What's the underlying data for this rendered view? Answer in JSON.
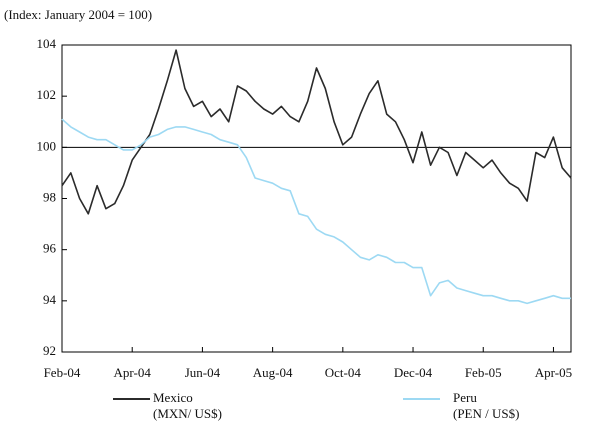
{
  "chart_data": {
    "type": "line",
    "subtitle": "(Index: January 2004 = 100)",
    "categories": [
      "Feb-04",
      null,
      null,
      null,
      null,
      null,
      null,
      null,
      "Apr-04",
      null,
      null,
      null,
      null,
      null,
      null,
      null,
      "Jun-04",
      null,
      null,
      null,
      null,
      null,
      null,
      null,
      "Aug-04",
      null,
      null,
      null,
      null,
      null,
      null,
      null,
      "Oct-04",
      null,
      null,
      null,
      null,
      null,
      null,
      null,
      "Dec-04",
      null,
      null,
      null,
      null,
      null,
      null,
      null,
      "Feb-05",
      null,
      null,
      null,
      null,
      null,
      null,
      null,
      "Apr-05",
      null,
      null
    ],
    "series": [
      {
        "name": "Mexico",
        "note": "(MXN/ US$)",
        "color": "#2b2b2b",
        "values": [
          98.5,
          99.0,
          98.0,
          97.4,
          98.5,
          97.6,
          97.8,
          98.5,
          99.5,
          100.0,
          100.5,
          101.5,
          102.6,
          103.8,
          102.3,
          101.6,
          101.8,
          101.2,
          101.5,
          101.0,
          102.4,
          102.2,
          101.8,
          101.5,
          101.3,
          101.6,
          101.2,
          101.0,
          101.8,
          103.1,
          102.3,
          101.0,
          100.1,
          100.4,
          101.3,
          102.1,
          102.6,
          101.3,
          101.0,
          100.3,
          99.4,
          100.6,
          99.3,
          100.0,
          99.8,
          98.9,
          99.8,
          99.5,
          99.2,
          99.5,
          99.0,
          98.6,
          98.4,
          97.9,
          99.8,
          99.6,
          100.4,
          99.2,
          98.8
        ]
      },
      {
        "name": "Peru",
        "note": "(PEN / US$)",
        "color": "#9dd9f3",
        "values": [
          101.1,
          100.8,
          100.6,
          100.4,
          100.3,
          100.3,
          100.1,
          99.9,
          99.9,
          100.1,
          100.4,
          100.5,
          100.7,
          100.8,
          100.8,
          100.7,
          100.6,
          100.5,
          100.3,
          100.2,
          100.1,
          99.6,
          98.8,
          98.7,
          98.6,
          98.4,
          98.3,
          97.4,
          97.3,
          96.8,
          96.6,
          96.5,
          96.3,
          96.0,
          95.7,
          95.6,
          95.8,
          95.7,
          95.5,
          95.5,
          95.3,
          95.3,
          94.2,
          94.7,
          94.8,
          94.5,
          94.4,
          94.3,
          94.2,
          94.2,
          94.1,
          94.0,
          94.0,
          93.9,
          94.0,
          94.1,
          94.2,
          94.1,
          94.1
        ]
      }
    ],
    "ylim": [
      92,
      104
    ],
    "yticks": [
      92,
      94,
      96,
      98,
      100,
      102,
      104
    ],
    "reference_line": 100,
    "grid": false
  }
}
